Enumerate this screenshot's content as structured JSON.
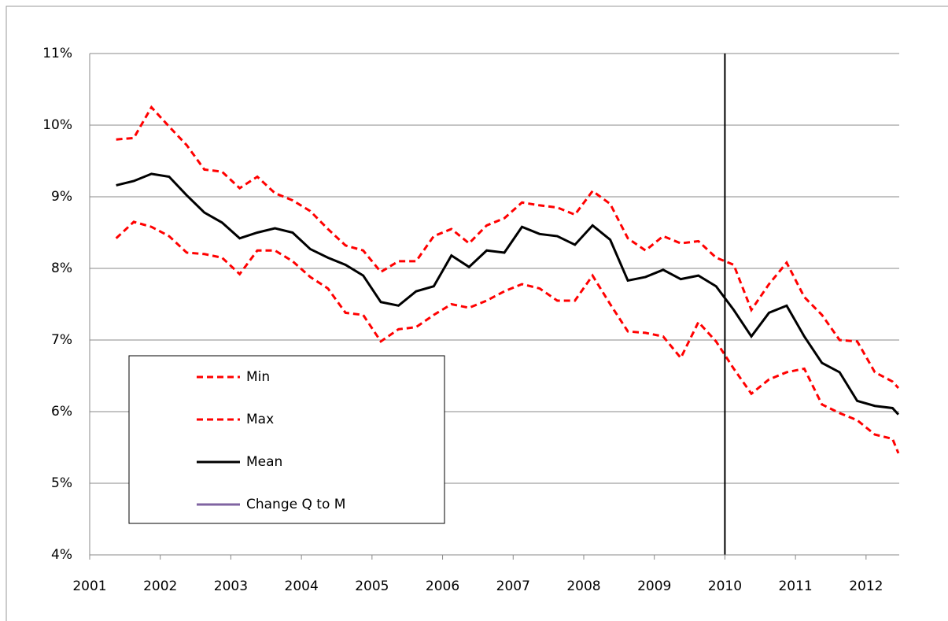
{
  "chart_data": {
    "type": "line",
    "x": [
      2001.375,
      2001.625,
      2001.875,
      2002.125,
      2002.375,
      2002.625,
      2002.875,
      2003.125,
      2003.375,
      2003.625,
      2003.875,
      2004.125,
      2004.375,
      2004.625,
      2004.875,
      2005.125,
      2005.375,
      2005.625,
      2005.875,
      2006.125,
      2006.375,
      2006.625,
      2006.875,
      2007.125,
      2007.375,
      2007.625,
      2007.875,
      2008.125,
      2008.375,
      2008.625,
      2008.875,
      2009.125,
      2009.375,
      2009.625,
      2009.875,
      2010.125,
      2010.375,
      2010.625,
      2010.875,
      2011.125,
      2011.375,
      2011.625,
      2011.875,
      2012.125,
      2012.375,
      2012.458
    ],
    "series": [
      {
        "name": "Min",
        "color": "#ff0000",
        "dashed": true,
        "values": [
          8.42,
          8.65,
          8.58,
          8.45,
          8.22,
          8.2,
          8.15,
          7.92,
          8.25,
          8.25,
          8.1,
          7.88,
          7.72,
          7.38,
          7.35,
          6.98,
          7.15,
          7.18,
          7.35,
          7.5,
          7.45,
          7.55,
          7.68,
          7.78,
          7.72,
          7.55,
          7.55,
          7.9,
          7.5,
          7.12,
          7.1,
          7.05,
          6.75,
          7.25,
          6.98,
          6.6,
          6.25,
          6.45,
          6.55,
          6.6,
          6.1,
          5.98,
          5.88,
          5.68,
          5.62,
          5.42
        ]
      },
      {
        "name": "Max",
        "color": "#ff0000",
        "dashed": true,
        "values": [
          9.8,
          9.82,
          10.25,
          9.98,
          9.72,
          9.38,
          9.35,
          9.12,
          9.28,
          9.05,
          8.95,
          8.8,
          8.55,
          8.32,
          8.25,
          7.95,
          8.1,
          8.1,
          8.45,
          8.55,
          8.35,
          8.6,
          8.7,
          8.92,
          8.88,
          8.85,
          8.75,
          9.08,
          8.9,
          8.42,
          8.25,
          8.45,
          8.35,
          8.38,
          8.15,
          8.05,
          7.42,
          7.78,
          8.08,
          7.6,
          7.35,
          7.0,
          6.98,
          6.55,
          6.42,
          6.33
        ]
      },
      {
        "name": "Mean",
        "color": "#000000",
        "dashed": false,
        "values": [
          9.16,
          9.22,
          9.32,
          9.28,
          9.02,
          8.78,
          8.64,
          8.42,
          8.5,
          8.56,
          8.5,
          8.27,
          8.15,
          8.05,
          7.9,
          7.53,
          7.48,
          7.68,
          7.75,
          8.18,
          8.02,
          8.25,
          8.22,
          8.58,
          8.48,
          8.45,
          8.33,
          8.6,
          8.4,
          7.83,
          7.88,
          7.98,
          7.85,
          7.9,
          7.75,
          7.42,
          7.05,
          7.38,
          7.48,
          7.05,
          6.68,
          6.55,
          6.15,
          6.08,
          6.05,
          5.96
        ]
      },
      {
        "name": "Change Q to M",
        "color": "#8064a2",
        "dashed": false,
        "x": [
          2010,
          2010
        ],
        "values": [
          4,
          11
        ]
      }
    ],
    "xlim": [
      2001,
      2012.47
    ],
    "xticks": [
      2001,
      2002,
      2003,
      2004,
      2005,
      2006,
      2007,
      2008,
      2009,
      2010,
      2011,
      2012
    ],
    "ylim": [
      4,
      11
    ],
    "yticks": [
      {
        "value": 4,
        "label": "4%"
      },
      {
        "value": 5,
        "label": "5%"
      },
      {
        "value": 6,
        "label": "6%"
      },
      {
        "value": 7,
        "label": "7%"
      },
      {
        "value": 8,
        "label": "8%"
      },
      {
        "value": 9,
        "label": "9%"
      },
      {
        "value": 10,
        "label": "10%"
      },
      {
        "value": 11,
        "label": "11%"
      }
    ],
    "grid": true
  }
}
